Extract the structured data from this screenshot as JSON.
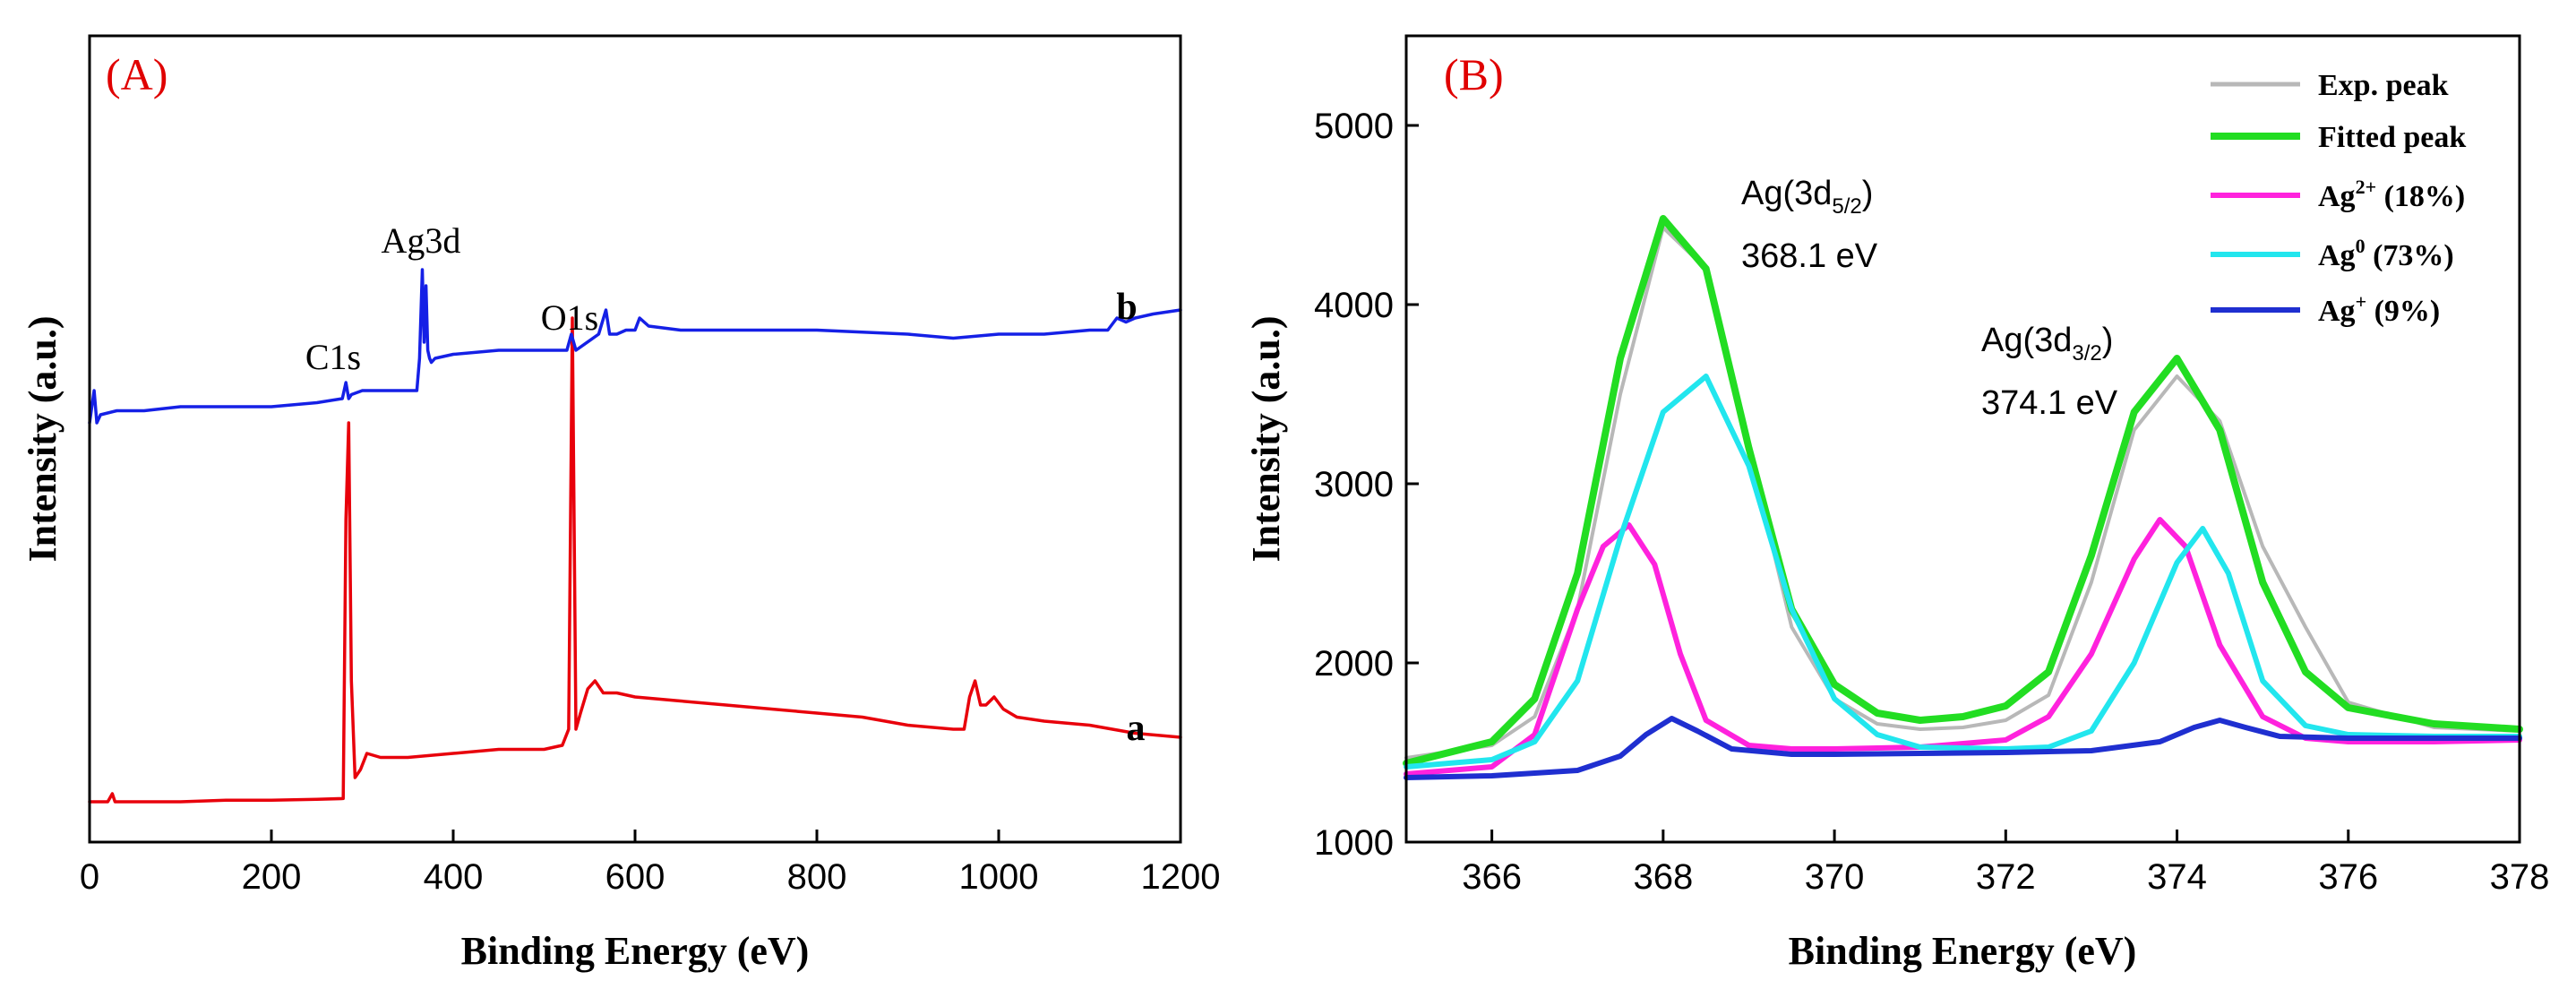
{
  "chart_data": [
    {
      "panel_label": "(A)",
      "type": "line",
      "xlabel": "Binding Energy (eV)",
      "ylabel": "Intensity (a.u.)",
      "xlim": [
        0,
        1200
      ],
      "ylim": [
        0,
        100
      ],
      "x_ticks": [
        0,
        200,
        400,
        600,
        800,
        1000,
        1200
      ],
      "x_tick_labels": [
        "0",
        "200",
        "400",
        "600",
        "800",
        "1000",
        "1200"
      ],
      "y_ticks_shown": false,
      "series": [
        {
          "name": "a",
          "color": "#e8000b",
          "x": [
            0,
            20,
            25,
            28,
            35,
            60,
            100,
            150,
            200,
            250,
            279,
            282,
            285,
            288,
            292,
            298,
            305,
            320,
            350,
            400,
            450,
            500,
            520,
            527,
            531,
            535,
            540,
            548,
            556,
            565,
            580,
            600,
            650,
            700,
            750,
            800,
            850,
            900,
            950,
            962,
            968,
            974,
            980,
            986,
            995,
            1005,
            1020,
            1050,
            1100,
            1150,
            1200
          ],
          "y": [
            5,
            5,
            6,
            5,
            5,
            5,
            5,
            5.2,
            5.2,
            5.3,
            5.4,
            40,
            52,
            20,
            8,
            9,
            11,
            10.5,
            10.5,
            11,
            11.5,
            11.5,
            12,
            14,
            65,
            14,
            16,
            19,
            20,
            18.5,
            18.5,
            18,
            17.5,
            17,
            16.5,
            16,
            15.5,
            14.5,
            14,
            14,
            18,
            20,
            17,
            17,
            18,
            16.5,
            15.5,
            15,
            14.5,
            13.5,
            13
          ]
        },
        {
          "name": "b",
          "color": "#1520e6",
          "x": [
            0,
            5,
            8,
            12,
            30,
            60,
            100,
            150,
            200,
            250,
            278,
            282,
            285,
            288,
            300,
            340,
            360,
            363,
            366,
            368,
            370,
            372,
            374,
            376,
            380,
            400,
            450,
            500,
            525,
            530,
            535,
            560,
            568,
            572,
            580,
            590,
            600,
            605,
            615,
            650,
            700,
            750,
            800,
            900,
            950,
            1000,
            1050,
            1100,
            1120,
            1130,
            1140,
            1150,
            1170,
            1200
          ],
          "y": [
            52,
            56,
            52,
            53,
            53.5,
            53.5,
            54,
            54,
            54,
            54.5,
            55,
            57,
            55,
            55.5,
            56,
            56,
            56,
            60,
            71,
            62,
            69,
            61,
            60,
            59.5,
            60,
            60.5,
            61,
            61,
            61,
            63,
            61,
            63,
            66,
            63,
            63,
            63.5,
            63.5,
            65,
            64,
            63.5,
            63.5,
            63.5,
            63.5,
            63,
            62.5,
            63,
            63,
            63.5,
            63.5,
            65,
            64.5,
            65,
            65.5,
            66
          ]
        }
      ],
      "annotations": [
        {
          "text": "C1s",
          "x": 283
        },
        {
          "text": "Ag3d",
          "x": 368
        },
        {
          "text": "O1s",
          "x": 531
        },
        {
          "text": "b",
          "x": 1135
        },
        {
          "text": "a",
          "x": 1140
        }
      ]
    },
    {
      "panel_label": "(B)",
      "type": "line",
      "xlabel": "Binding Energy (eV)",
      "ylabel": "Intensity (a.u.)",
      "xlim": [
        365,
        378
      ],
      "ylim": [
        1000,
        5500
      ],
      "x_ticks": [
        366,
        368,
        370,
        372,
        374,
        376,
        378
      ],
      "x_tick_labels": [
        "366",
        "368",
        "370",
        "372",
        "374",
        "376",
        "378"
      ],
      "y_ticks": [
        1000,
        2000,
        3000,
        4000,
        5000
      ],
      "y_tick_labels": [
        "1000",
        "2000",
        "3000",
        "4000",
        "5000"
      ],
      "series": [
        {
          "name": "Exp. peak",
          "color": "#b8b8b8",
          "x": [
            365,
            366,
            366.5,
            367,
            367.5,
            368,
            368.5,
            369,
            369.5,
            370,
            370.5,
            371,
            371.5,
            372,
            372.5,
            373,
            373.5,
            374,
            374.5,
            375,
            375.5,
            376,
            377,
            378
          ],
          "y": [
            1470,
            1540,
            1700,
            2300,
            3500,
            4430,
            4200,
            3200,
            2200,
            1800,
            1660,
            1630,
            1640,
            1680,
            1820,
            2450,
            3300,
            3600,
            3350,
            2650,
            2200,
            1780,
            1640,
            1620
          ]
        },
        {
          "name": "Fitted peak",
          "color": "#22dd22",
          "x": [
            365,
            366,
            366.5,
            367,
            367.5,
            368,
            368.5,
            369,
            369.5,
            370,
            370.5,
            371,
            371.5,
            372,
            372.5,
            373,
            373.5,
            374,
            374.5,
            375,
            375.5,
            376,
            377,
            378
          ],
          "y": [
            1440,
            1560,
            1800,
            2500,
            3700,
            4480,
            4200,
            3200,
            2300,
            1880,
            1720,
            1680,
            1700,
            1760,
            1950,
            2600,
            3400,
            3700,
            3300,
            2450,
            1950,
            1750,
            1660,
            1630
          ]
        },
        {
          "name": "Ag2+ (18%)",
          "color": "#ff22dd",
          "x": [
            365,
            366,
            366.5,
            367,
            367.3,
            367.6,
            367.9,
            368.2,
            368.5,
            369,
            369.5,
            370,
            371,
            372,
            372.5,
            373,
            373.5,
            373.8,
            374.1,
            374.5,
            375,
            375.5,
            376,
            377,
            378
          ],
          "y": [
            1380,
            1420,
            1600,
            2300,
            2650,
            2770,
            2550,
            2050,
            1680,
            1540,
            1520,
            1520,
            1530,
            1570,
            1700,
            2050,
            2580,
            2800,
            2650,
            2100,
            1700,
            1580,
            1560,
            1560,
            1570
          ]
        },
        {
          "name": "Ag0 (73%)",
          "color": "#22e6ee",
          "x": [
            365,
            366,
            366.5,
            367,
            367.5,
            368,
            368.5,
            369,
            369.5,
            370,
            370.5,
            371,
            372,
            372.5,
            373,
            373.5,
            374,
            374.3,
            374.6,
            375,
            375.5,
            376,
            377,
            378
          ],
          "y": [
            1420,
            1460,
            1560,
            1900,
            2700,
            3400,
            3600,
            3100,
            2300,
            1800,
            1600,
            1530,
            1520,
            1530,
            1620,
            2000,
            2560,
            2750,
            2500,
            1900,
            1650,
            1600,
            1590,
            1590
          ]
        },
        {
          "name": "Ag+ (9%)",
          "color": "#1f2fd0",
          "x": [
            365,
            366,
            367,
            367.5,
            367.8,
            368.1,
            368.4,
            368.8,
            369.5,
            370,
            371,
            372,
            373,
            373.8,
            374.2,
            374.5,
            374.8,
            375.2,
            376,
            377,
            378
          ],
          "y": [
            1360,
            1370,
            1400,
            1480,
            1600,
            1690,
            1620,
            1520,
            1490,
            1490,
            1495,
            1500,
            1510,
            1560,
            1640,
            1680,
            1640,
            1590,
            1580,
            1580,
            1580
          ]
        }
      ],
      "annotations": [
        {
          "text": "Ag(3d",
          "sub": "5/2",
          "close": ")",
          "energy": "368.1 eV"
        },
        {
          "text": "Ag(3d",
          "sub": "3/2",
          "close": ")",
          "energy": "374.1 eV"
        }
      ],
      "legend": {
        "position": "top-right",
        "entries": [
          {
            "label": "Exp. peak",
            "color": "#b8b8b8"
          },
          {
            "label": "Fitted peak",
            "color": "#22dd22"
          },
          {
            "label_base": "Ag",
            "sup": "2+",
            "label_rest": " (18%)",
            "color": "#ff22dd"
          },
          {
            "label_base": "Ag",
            "sup": "0",
            "label_rest": " (73%)",
            "color": "#22e6ee"
          },
          {
            "label_base": "Ag",
            "sup": "+",
            "label_rest": " (9%)",
            "color": "#1f2fd0"
          }
        ]
      }
    }
  ]
}
